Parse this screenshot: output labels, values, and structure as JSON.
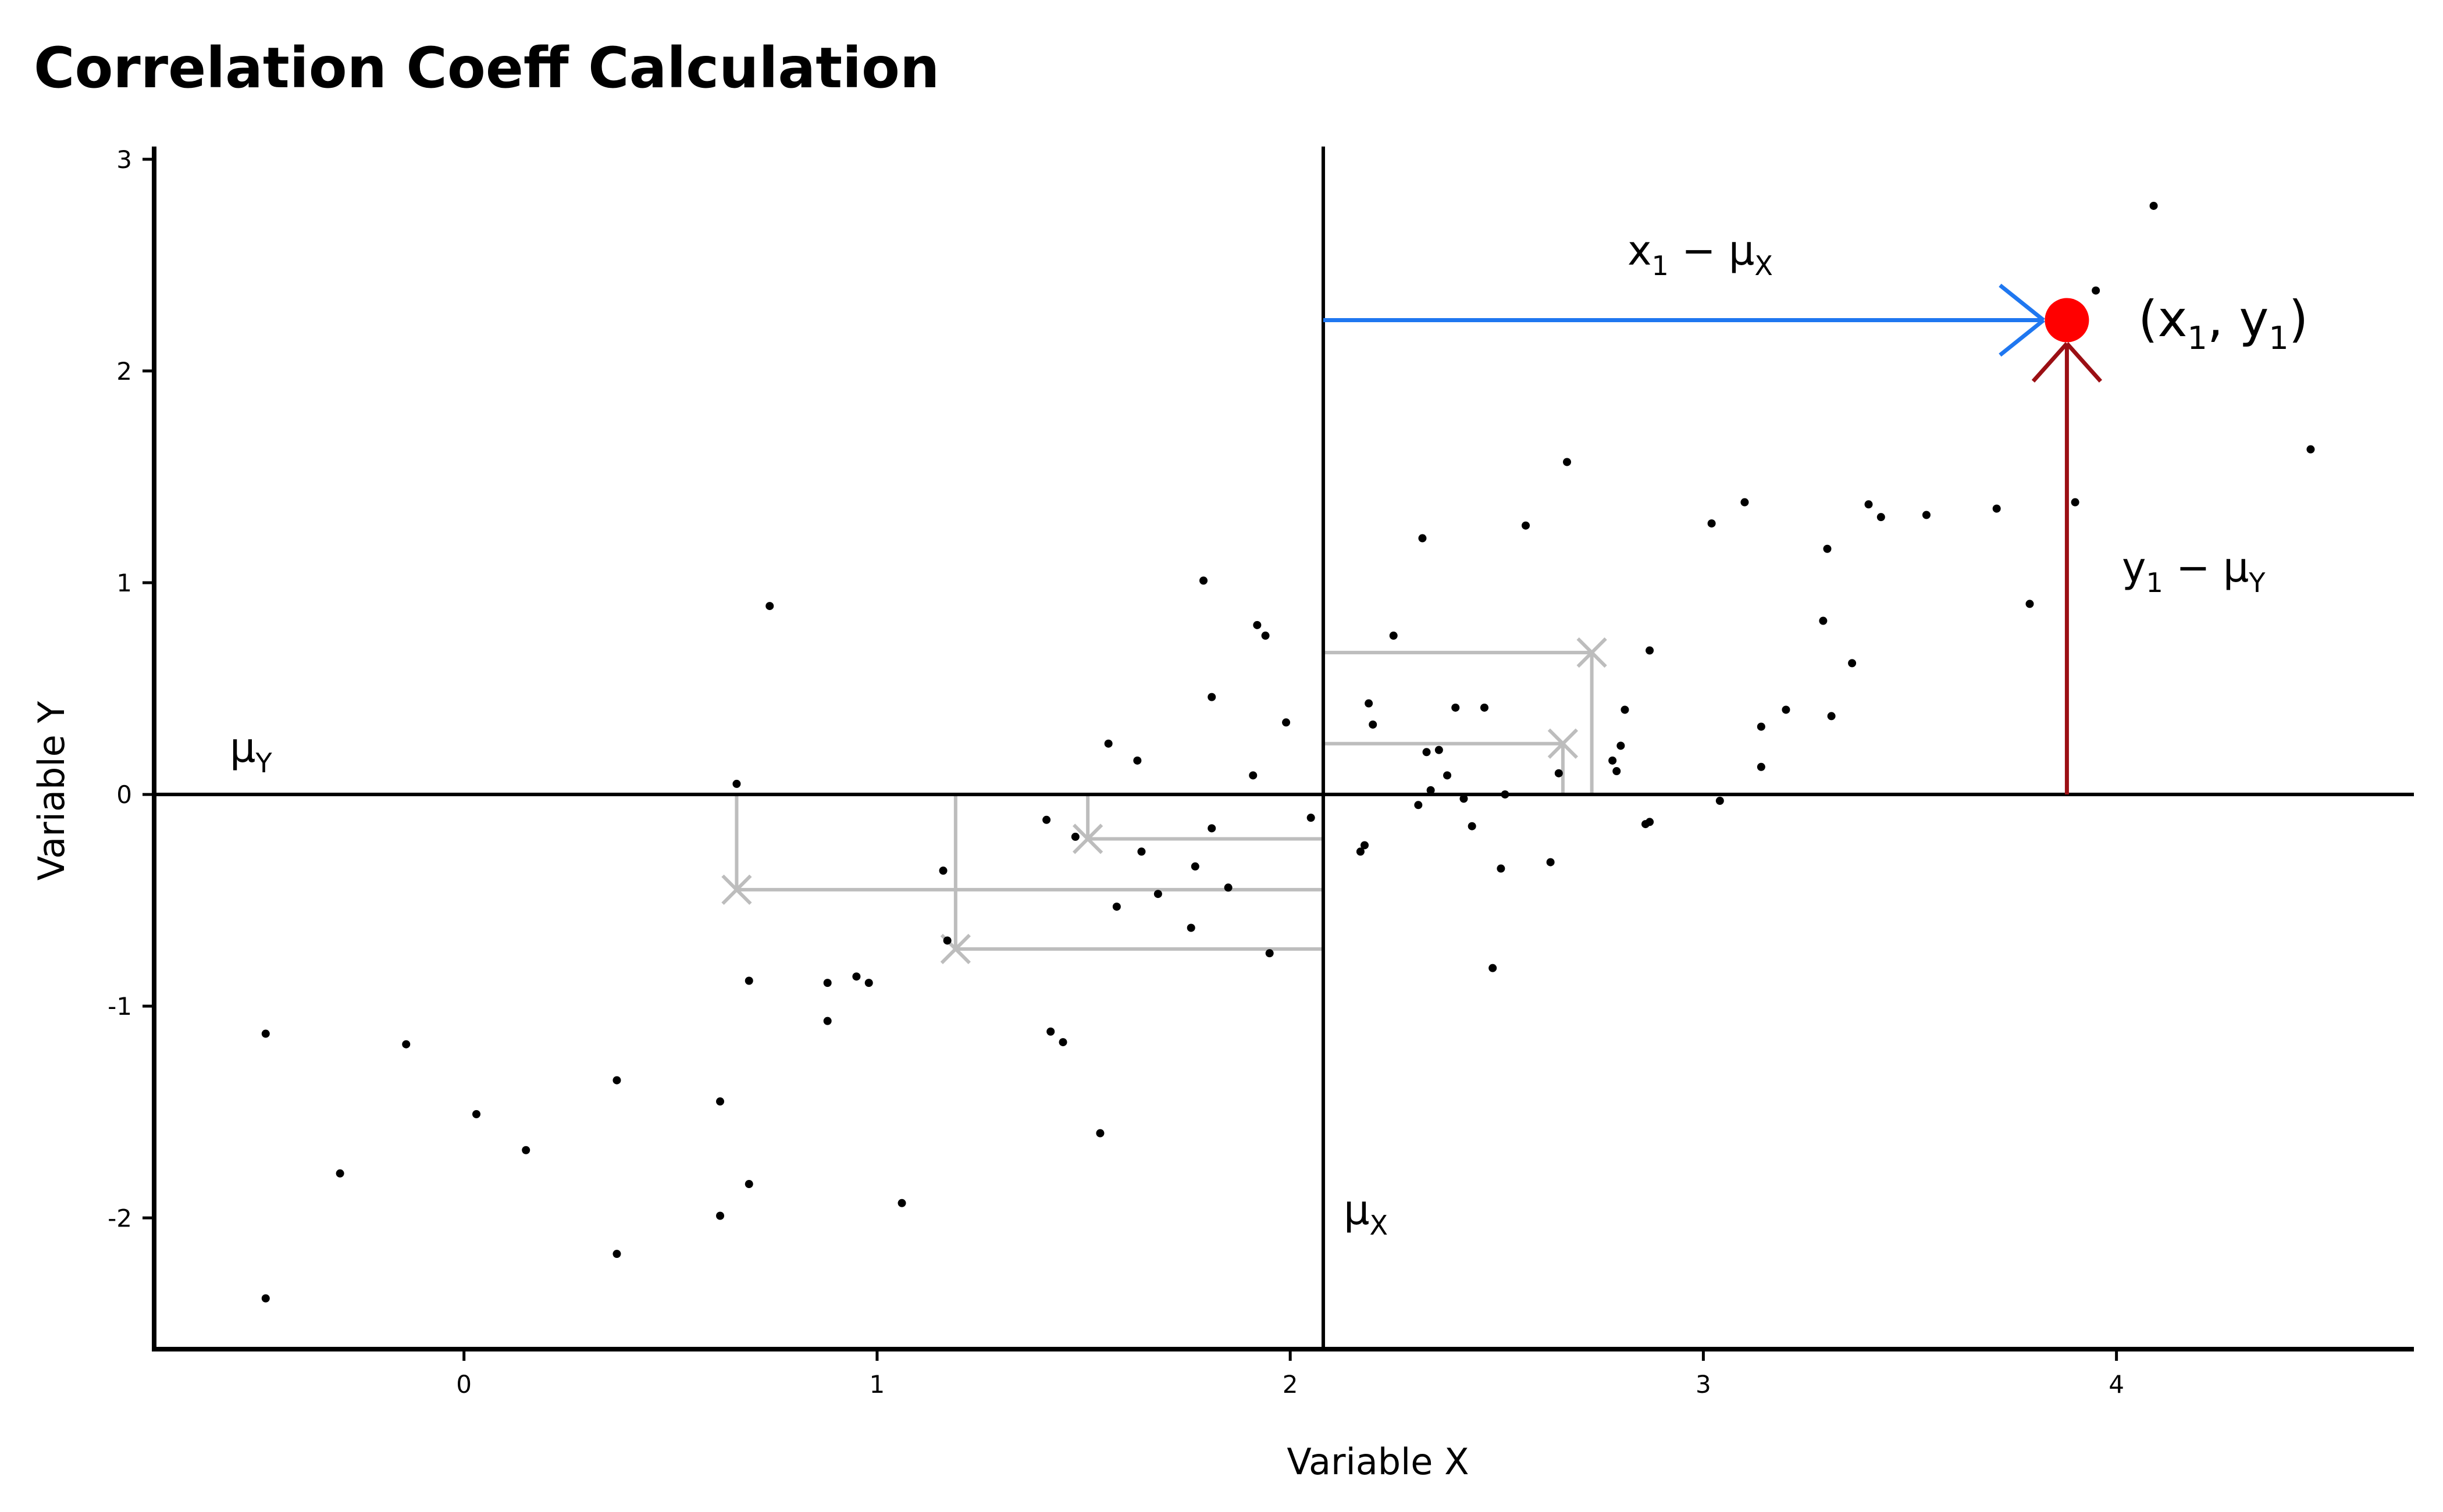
{
  "chart_data": {
    "type": "scatter",
    "title": "Correlation Coeff Calculation",
    "xlabel": "Variable X",
    "ylabel": "Variable Y",
    "xlim": [
      -0.75,
      4.72
    ],
    "ylim": [
      -2.62,
      3.06
    ],
    "x_ticks": [
      0,
      1,
      2,
      3,
      4
    ],
    "y_ticks": [
      -2,
      -1,
      0,
      1,
      2,
      3
    ],
    "grid": false,
    "mean_x": 2.08,
    "mean_y": 0,
    "highlight_point": {
      "x": 3.88,
      "y": 2.24
    },
    "annotations": {
      "mu_y": {
        "base": "μ",
        "sub": "Y"
      },
      "mu_x": {
        "base": "μ",
        "sub": "X"
      },
      "x_dev": {
        "a": "x",
        "a_sub": "1",
        "op": " − μ",
        "b_sub": "X"
      },
      "y_dev": {
        "a": "y",
        "a_sub": "1",
        "op": " − μ",
        "b_sub": "Y"
      },
      "point": {
        "p1": "(x",
        "s1": "1",
        "p2": ", y",
        "s2": "1",
        "p3": ")"
      }
    },
    "deviation_examples": [
      {
        "x": 2.73,
        "y": 0.67
      },
      {
        "x": 2.66,
        "y": 0.24
      },
      {
        "x": 1.51,
        "y": -0.21
      },
      {
        "x": 0.66,
        "y": -0.45
      },
      {
        "x": 1.19,
        "y": -0.73
      }
    ],
    "colors": {
      "points": "#000000",
      "highlight": "#ff0000",
      "x_dev_line": "#1f77f0",
      "y_dev_line": "#9b0f14",
      "example_lines": "#bdbdbd"
    },
    "points": [
      [
        -0.48,
        -1.13
      ],
      [
        -0.48,
        -2.38
      ],
      [
        -0.3,
        -1.79
      ],
      [
        -0.14,
        -1.18
      ],
      [
        0.03,
        -1.51
      ],
      [
        0.15,
        -1.68
      ],
      [
        0.37,
        -1.35
      ],
      [
        0.37,
        -2.17
      ],
      [
        0.62,
        -1.45
      ],
      [
        0.62,
        -1.99
      ],
      [
        0.66,
        0.05
      ],
      [
        0.69,
        -0.88
      ],
      [
        0.69,
        -1.84
      ],
      [
        0.74,
        0.89
      ],
      [
        0.88,
        -0.89
      ],
      [
        0.88,
        -1.07
      ],
      [
        0.95,
        -0.86
      ],
      [
        0.98,
        -0.89
      ],
      [
        1.06,
        -1.93
      ],
      [
        1.16,
        -0.36
      ],
      [
        1.17,
        -0.69
      ],
      [
        1.41,
        -0.12
      ],
      [
        1.42,
        -1.12
      ],
      [
        1.45,
        -1.17
      ],
      [
        1.48,
        -0.2
      ],
      [
        1.54,
        -1.6
      ],
      [
        1.56,
        0.24
      ],
      [
        1.58,
        -0.53
      ],
      [
        1.63,
        0.16
      ],
      [
        1.64,
        -0.27
      ],
      [
        1.68,
        -0.47
      ],
      [
        1.76,
        -0.63
      ],
      [
        1.77,
        -0.34
      ],
      [
        1.79,
        1.01
      ],
      [
        1.81,
        0.46
      ],
      [
        1.81,
        -0.16
      ],
      [
        1.85,
        -0.44
      ],
      [
        1.91,
        0.09
      ],
      [
        1.92,
        0.8
      ],
      [
        1.94,
        0.75
      ],
      [
        1.95,
        -0.75
      ],
      [
        1.99,
        0.34
      ],
      [
        2.05,
        -0.11
      ],
      [
        2.17,
        -0.27
      ],
      [
        2.18,
        -0.24
      ],
      [
        2.19,
        0.43
      ],
      [
        2.2,
        0.33
      ],
      [
        2.25,
        0.75
      ],
      [
        2.31,
        -0.05
      ],
      [
        2.32,
        1.21
      ],
      [
        2.33,
        0.2
      ],
      [
        2.34,
        0.02
      ],
      [
        2.36,
        0.21
      ],
      [
        2.38,
        0.09
      ],
      [
        2.4,
        0.41
      ],
      [
        2.42,
        -0.02
      ],
      [
        2.44,
        -0.15
      ],
      [
        2.47,
        0.41
      ],
      [
        2.49,
        -0.82
      ],
      [
        2.51,
        -0.35
      ],
      [
        2.52,
        0.0
      ],
      [
        2.57,
        1.27
      ],
      [
        2.63,
        -0.32
      ],
      [
        2.65,
        0.1
      ],
      [
        2.67,
        1.57
      ],
      [
        2.78,
        0.16
      ],
      [
        2.79,
        0.11
      ],
      [
        2.8,
        0.23
      ],
      [
        2.81,
        0.4
      ],
      [
        2.86,
        -0.14
      ],
      [
        2.87,
        -0.13
      ],
      [
        2.87,
        0.68
      ],
      [
        3.02,
        1.28
      ],
      [
        3.04,
        -0.03
      ],
      [
        3.1,
        1.38
      ],
      [
        3.14,
        0.32
      ],
      [
        3.14,
        0.13
      ],
      [
        3.2,
        0.4
      ],
      [
        3.29,
        0.82
      ],
      [
        3.3,
        1.16
      ],
      [
        3.31,
        0.37
      ],
      [
        3.36,
        0.62
      ],
      [
        3.4,
        1.37
      ],
      [
        3.43,
        1.31
      ],
      [
        3.54,
        1.32
      ],
      [
        3.71,
        1.35
      ],
      [
        3.79,
        0.9
      ],
      [
        3.9,
        1.38
      ],
      [
        3.95,
        2.38
      ],
      [
        4.09,
        2.78
      ],
      [
        4.47,
        1.63
      ]
    ]
  }
}
